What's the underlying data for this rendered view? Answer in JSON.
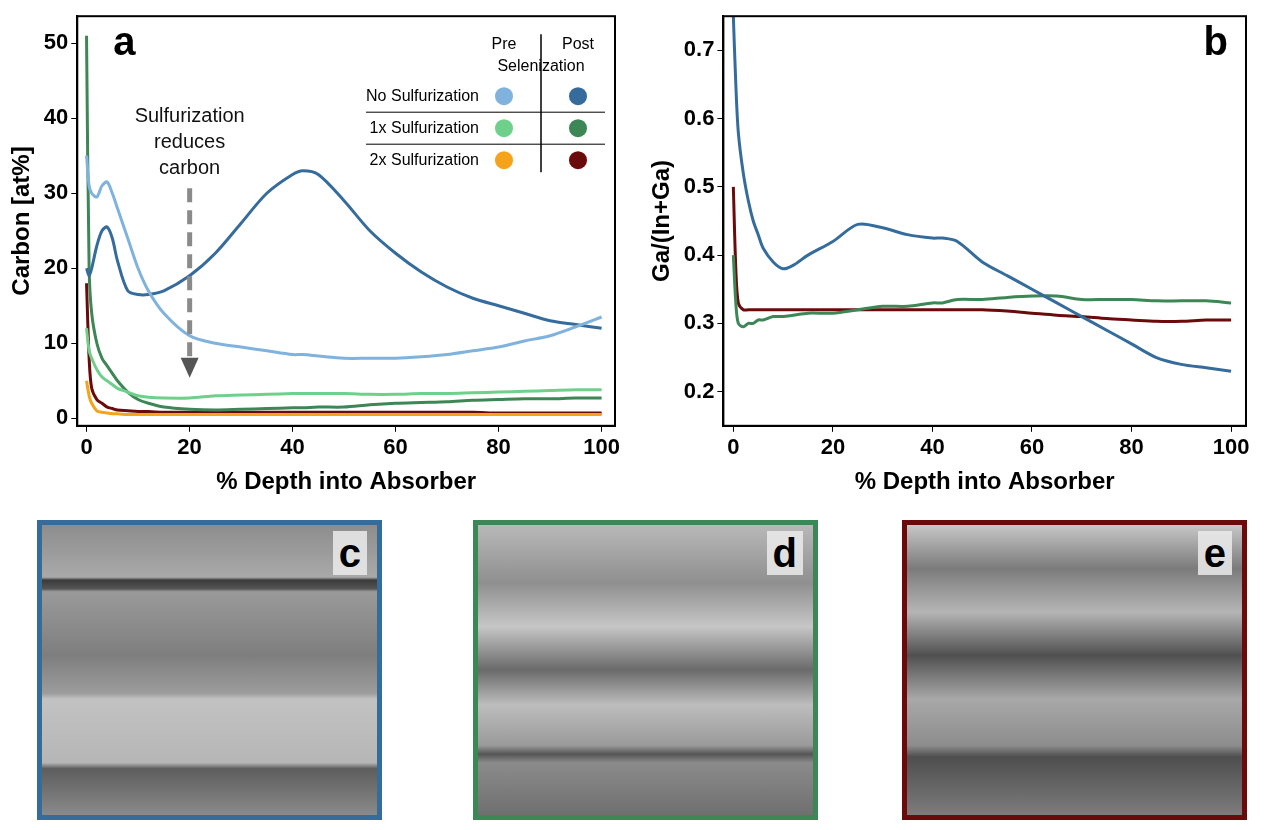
{
  "chart_data": [
    {
      "type": "line",
      "panel_label": "a",
      "x_label": "% Depth into Absorber",
      "y_label": "Carbon [at%]",
      "x": [
        0,
        0.5,
        1,
        2,
        3,
        4,
        5,
        6,
        8,
        10,
        12,
        15,
        20,
        25,
        30,
        35,
        40,
        42,
        45,
        50,
        55,
        60,
        65,
        70,
        75,
        80,
        85,
        90,
        95,
        100
      ],
      "series": [
        {
          "name": "No Sulfurization",
          "stage": "Pre",
          "color": "#7fb3de",
          "values": [
            35,
            31,
            30,
            29.5,
            31,
            31.5,
            30,
            28,
            24,
            20,
            17,
            14,
            11,
            10,
            9.5,
            9,
            8.5,
            8.5,
            8.3,
            8,
            8,
            8,
            8.2,
            8.5,
            9,
            9.5,
            10.3,
            11,
            12.2,
            13.5
          ]
        },
        {
          "name": "No Sulfurization",
          "stage": "Post",
          "color": "#356c9c",
          "values": [
            20,
            19,
            20,
            23,
            25,
            25.5,
            24,
            21,
            17,
            16.5,
            16.5,
            17,
            19,
            22,
            26,
            30,
            32.5,
            33,
            32.5,
            29,
            25,
            22,
            19.5,
            17.5,
            16,
            15,
            14,
            13,
            12.5,
            12
          ]
        },
        {
          "name": "1x Sulfurization",
          "stage": "Pre",
          "color": "#6fd08c",
          "values": [
            12,
            9,
            8,
            6.5,
            5.5,
            5,
            4.5,
            4,
            3.5,
            3,
            2.8,
            2.7,
            2.7,
            3,
            3.1,
            3.2,
            3.3,
            3.3,
            3.3,
            3.3,
            3.2,
            3.2,
            3.3,
            3.3,
            3.4,
            3.5,
            3.6,
            3.7,
            3.8,
            3.8
          ]
        },
        {
          "name": "1x Sulfurization",
          "stage": "Post",
          "color": "#3d8656",
          "values": [
            51,
            20,
            14,
            10,
            8,
            7,
            6,
            5,
            3.5,
            2.5,
            2,
            1.5,
            1.2,
            1.1,
            1.2,
            1.3,
            1.4,
            1.4,
            1.5,
            1.5,
            1.8,
            2,
            2.1,
            2.2,
            2.4,
            2.5,
            2.6,
            2.6,
            2.7,
            2.7
          ]
        },
        {
          "name": "2x Sulfurization",
          "stage": "Pre",
          "color": "#f5a31a",
          "values": [
            5,
            3,
            2,
            1,
            0.8,
            0.7,
            0.6,
            0.6,
            0.5,
            0.5,
            0.5,
            0.5,
            0.5,
            0.5,
            0.5,
            0.5,
            0.5,
            0.5,
            0.5,
            0.5,
            0.5,
            0.5,
            0.5,
            0.5,
            0.5,
            0.5,
            0.5,
            0.5,
            0.5,
            0.5
          ]
        },
        {
          "name": "2x Sulfurization",
          "stage": "Post",
          "color": "#6b0a0a",
          "values": [
            18,
            8,
            4,
            2.5,
            2,
            1.5,
            1.3,
            1.1,
            1,
            0.9,
            0.9,
            0.8,
            0.8,
            0.8,
            0.8,
            0.8,
            0.8,
            0.8,
            0.8,
            0.8,
            0.8,
            0.8,
            0.8,
            0.8,
            0.8,
            0.7,
            0.7,
            0.7,
            0.7,
            0.7
          ]
        }
      ],
      "legend": "upper right",
      "legend_header": {
        "columns": [
          "Pre",
          "Post"
        ],
        "caption": "Selenization"
      },
      "annotations": [
        {
          "text": "Sulfurization reduces carbon"
        }
      ],
      "xlim": [
        -1.8,
        102.6
      ],
      "xticks": [
        0,
        20,
        40,
        60,
        80,
        100
      ],
      "ylim": [
        -1,
        53.6
      ],
      "yticks": [
        0,
        10,
        20,
        30,
        40,
        50
      ],
      "grid": false
    },
    {
      "type": "line",
      "panel_label": "b",
      "x_label": "% Depth into Absorber",
      "y_label": "Ga/(In+Ga)",
      "x": [
        0,
        0.5,
        1,
        2,
        3,
        4,
        5,
        6,
        8,
        10,
        12,
        15,
        20,
        25,
        30,
        35,
        40,
        42,
        45,
        50,
        55,
        60,
        65,
        70,
        75,
        80,
        85,
        90,
        95,
        100
      ],
      "series": [
        {
          "name": "No Sulfurization",
          "stage": "Post",
          "color": "#356c9c",
          "values": [
            0.75,
            0.65,
            0.58,
            0.52,
            0.48,
            0.45,
            0.43,
            0.41,
            0.39,
            0.38,
            0.385,
            0.4,
            0.42,
            0.445,
            0.44,
            0.43,
            0.425,
            0.425,
            0.42,
            0.39,
            0.37,
            0.35,
            0.33,
            0.31,
            0.29,
            0.27,
            0.25,
            0.24,
            0.235,
            0.23
          ]
        },
        {
          "name": "1x Sulfurization",
          "stage": "Post",
          "color": "#3d8656",
          "values": [
            0.4,
            0.33,
            0.3,
            0.295,
            0.3,
            0.3,
            0.305,
            0.305,
            0.31,
            0.31,
            0.312,
            0.315,
            0.315,
            0.32,
            0.325,
            0.325,
            0.33,
            0.33,
            0.335,
            0.335,
            0.338,
            0.34,
            0.34,
            0.335,
            0.335,
            0.335,
            0.333,
            0.333,
            0.333,
            0.33
          ]
        },
        {
          "name": "2x Sulfurization",
          "stage": "Post",
          "color": "#6b0a0a",
          "values": [
            0.5,
            0.38,
            0.33,
            0.32,
            0.32,
            0.32,
            0.32,
            0.32,
            0.32,
            0.32,
            0.32,
            0.32,
            0.32,
            0.32,
            0.32,
            0.32,
            0.32,
            0.32,
            0.32,
            0.32,
            0.318,
            0.315,
            0.312,
            0.31,
            0.307,
            0.305,
            0.303,
            0.303,
            0.305,
            0.305
          ]
        }
      ],
      "xlim": [
        -2,
        103
      ],
      "xticks": [
        0,
        20,
        40,
        60,
        80,
        100
      ],
      "ylim": [
        0.15,
        0.75
      ],
      "yticks": [
        0.2,
        0.3,
        0.4,
        0.5,
        0.6,
        0.7
      ],
      "grid": false
    }
  ],
  "micrographs": [
    {
      "label": "c",
      "color": "#356c9c"
    },
    {
      "label": "d",
      "color": "#3d8656"
    },
    {
      "label": "e",
      "color": "#6b0a0a"
    }
  ]
}
